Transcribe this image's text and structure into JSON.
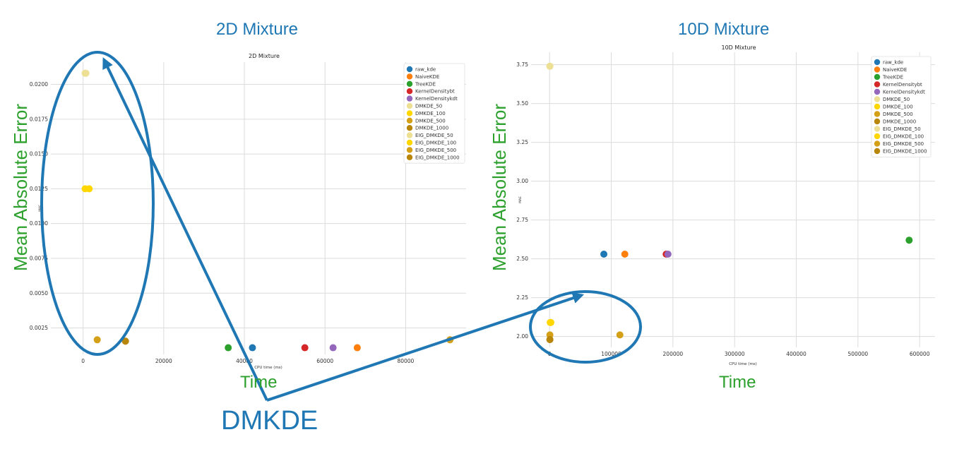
{
  "page": {
    "left_heading": "2D Mixture",
    "right_heading": "10D Mixture",
    "ylabel_overlay": "Mean Absolute Error",
    "xlabel_overlay": "Time",
    "annotation": "DMKDE",
    "annotation_color": "#1f77b4",
    "overlay_text_color": "#2ca02c"
  },
  "chart_data": [
    {
      "type": "scatter",
      "title": "2D Mixture",
      "xlabel": "CPU time (ms)",
      "ylabel": "MAE",
      "xlim": [
        -8000,
        95000
      ],
      "ylim": [
        0.0006,
        0.0216
      ],
      "xticks": [
        0,
        20000,
        40000,
        60000,
        80000
      ],
      "yticks": [
        0.0025,
        0.005,
        0.0075,
        0.01,
        0.0125,
        0.015,
        0.0175,
        0.02
      ],
      "ytick_labels": [
        "0.0025",
        "0.0050",
        "0.0075",
        "0.0100",
        "0.0125",
        "0.0150",
        "0.0175",
        "0.0200"
      ],
      "grid": true,
      "legend": "top-right",
      "series": [
        {
          "name": "raw_kde",
          "color": "#1f77b4",
          "points": [
            [
              42000,
              0.00108
            ]
          ]
        },
        {
          "name": "NaiveKDE",
          "color": "#ff7f0e",
          "points": [
            [
              68000,
              0.00108
            ]
          ]
        },
        {
          "name": "TreeKDE",
          "color": "#2ca02c",
          "points": [
            [
              36000,
              0.00108
            ]
          ]
        },
        {
          "name": "KernelDensitybt",
          "color": "#d62728",
          "points": [
            [
              55000,
              0.00108
            ]
          ]
        },
        {
          "name": "KernelDensitykdt",
          "color": "#9467bd",
          "points": [
            [
              62000,
              0.00108
            ]
          ]
        },
        {
          "name": "DMKDE_50",
          "color": "#ede094",
          "points": [
            [
              500,
              0.0208
            ]
          ]
        },
        {
          "name": "DMKDE_100",
          "color": "#ffd700",
          "points": [
            [
              500,
              0.0125
            ]
          ]
        },
        {
          "name": "DMKDE_500",
          "color": "#d4a017",
          "points": [
            [
              3500,
              0.00165
            ]
          ]
        },
        {
          "name": "DMKDE_1000",
          "color": "#b8860b",
          "points": [
            [
              10500,
              0.00155
            ]
          ]
        },
        {
          "name": "EIG_DMKDE_50",
          "color": "#ede094",
          "points": [
            [
              700,
              0.0208
            ]
          ]
        },
        {
          "name": "EIG_DMKDE_100",
          "color": "#ffd700",
          "points": [
            [
              1500,
              0.0125
            ]
          ]
        },
        {
          "name": "EIG_DMKDE_500",
          "color": "#d4a017",
          "points": [
            [
              91000,
              0.00165
            ]
          ]
        },
        {
          "name": "EIG_DMKDE_1000",
          "color": "#b8860b",
          "points": [
            [
              10500,
              0.00155
            ]
          ]
        }
      ]
    },
    {
      "type": "scatter",
      "title": "10D Mixture",
      "xlabel": "CPU time (ms)",
      "ylabel": "MAE",
      "xlim": [
        -30000,
        625000
      ],
      "ylim": [
        1.93,
        3.83
      ],
      "xticks": [
        0,
        100000,
        200000,
        300000,
        400000,
        500000,
        600000
      ],
      "yticks": [
        2.0,
        2.25,
        2.5,
        2.75,
        3.0,
        3.25,
        3.5,
        3.75
      ],
      "ytick_labels": [
        "2.00",
        "2.25",
        "2.50",
        "2.75",
        "3.00",
        "3.25",
        "3.50",
        "3.75"
      ],
      "grid": true,
      "legend": "top-right",
      "series": [
        {
          "name": "raw_kde",
          "color": "#1f77b4",
          "points": [
            [
              88000,
              2.53
            ]
          ]
        },
        {
          "name": "NaiveKDE",
          "color": "#ff7f0e",
          "points": [
            [
              122000,
              2.53
            ]
          ]
        },
        {
          "name": "TreeKDE",
          "color": "#2ca02c",
          "points": [
            [
              583000,
              2.62
            ]
          ]
        },
        {
          "name": "KernelDensitybt",
          "color": "#d62728",
          "points": [
            [
              189000,
              2.53
            ]
          ]
        },
        {
          "name": "KernelDensitykdt",
          "color": "#9467bd",
          "points": [
            [
              192000,
              2.53
            ]
          ]
        },
        {
          "name": "DMKDE_50",
          "color": "#ede094",
          "points": [
            [
              500,
              3.74
            ]
          ]
        },
        {
          "name": "DMKDE_100",
          "color": "#ffd700",
          "points": [
            [
              1000,
              2.09
            ]
          ]
        },
        {
          "name": "DMKDE_500",
          "color": "#d4a017",
          "points": [
            [
              500,
              2.01
            ]
          ]
        },
        {
          "name": "DMKDE_1000",
          "color": "#b8860b",
          "points": [
            [
              500,
              1.98
            ]
          ]
        },
        {
          "name": "EIG_DMKDE_50",
          "color": "#ede094",
          "points": [
            [
              500,
              3.74
            ]
          ]
        },
        {
          "name": "EIG_DMKDE_100",
          "color": "#ffd700",
          "points": [
            [
              2000,
              2.09
            ]
          ]
        },
        {
          "name": "EIG_DMKDE_500",
          "color": "#d4a017",
          "points": [
            [
              114000,
              2.01
            ]
          ]
        },
        {
          "name": "EIG_DMKDE_1000",
          "color": "#b8860b",
          "points": [
            [
              500,
              1.98
            ]
          ]
        }
      ]
    }
  ]
}
